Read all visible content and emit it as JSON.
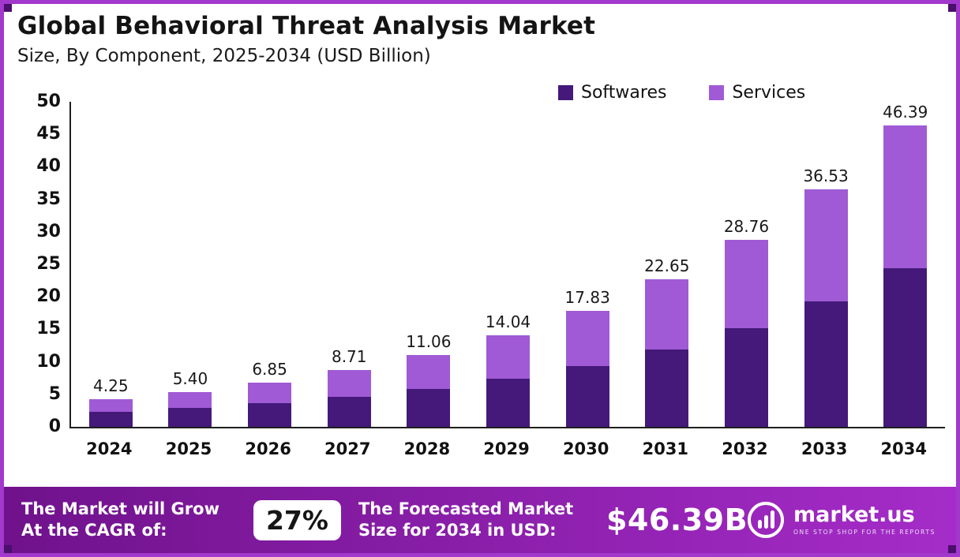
{
  "title": "Global Behavioral Threat Analysis Market",
  "subtitle": "Size, By Component, 2025-2034 (USD Billion)",
  "colors": {
    "softwares": "#44197a",
    "services": "#a05ad5",
    "border": "#a238cc",
    "corner_accent": "#4b0f6e",
    "banner_left": "#70128c",
    "banner_right": "#a52cc8"
  },
  "legend": [
    {
      "label": "Softwares",
      "color": "#44197a"
    },
    {
      "label": "Services",
      "color": "#a05ad5"
    }
  ],
  "chart_data": {
    "type": "bar",
    "stacked": true,
    "title": "Global Behavioral Threat Analysis Market",
    "subtitle": "Size, By Component, 2025-2034 (USD Billion)",
    "xlabel": "",
    "ylabel": "USD Billion",
    "ylim": [
      0,
      50
    ],
    "yticks": [
      0,
      5,
      10,
      15,
      20,
      25,
      30,
      35,
      40,
      45,
      50
    ],
    "grid": false,
    "legend_position": "top-right",
    "categories": [
      "2024",
      "2025",
      "2026",
      "2027",
      "2028",
      "2029",
      "2030",
      "2031",
      "2032",
      "2033",
      "2034"
    ],
    "series": [
      {
        "name": "Softwares",
        "color": "#44197a",
        "values": [
          2.25,
          2.87,
          3.63,
          4.6,
          5.85,
          7.42,
          9.4,
          11.95,
          15.15,
          19.25,
          24.45
        ]
      },
      {
        "name": "Services",
        "color": "#a05ad5",
        "values": [
          2.0,
          2.53,
          3.22,
          4.11,
          5.21,
          6.62,
          8.43,
          10.7,
          13.61,
          17.28,
          21.94
        ]
      }
    ],
    "totals": [
      4.25,
      5.4,
      6.85,
      8.71,
      11.06,
      14.04,
      17.83,
      22.65,
      28.76,
      36.53,
      46.39
    ],
    "total_labels": [
      "4.25",
      "5.40",
      "6.85",
      "8.71",
      "11.06",
      "14.04",
      "17.83",
      "22.65",
      "28.76",
      "36.53",
      "46.39"
    ]
  },
  "footer": {
    "cagr_label": "The Market will Grow At the CAGR of:",
    "cagr_value": "27%",
    "forecast_label": "The Forecasted Market Size for 2034 in USD:",
    "forecast_value": "$46.39B",
    "brand": "market.us",
    "brand_tagline": "ONE STOP SHOP FOR THE REPORTS"
  }
}
